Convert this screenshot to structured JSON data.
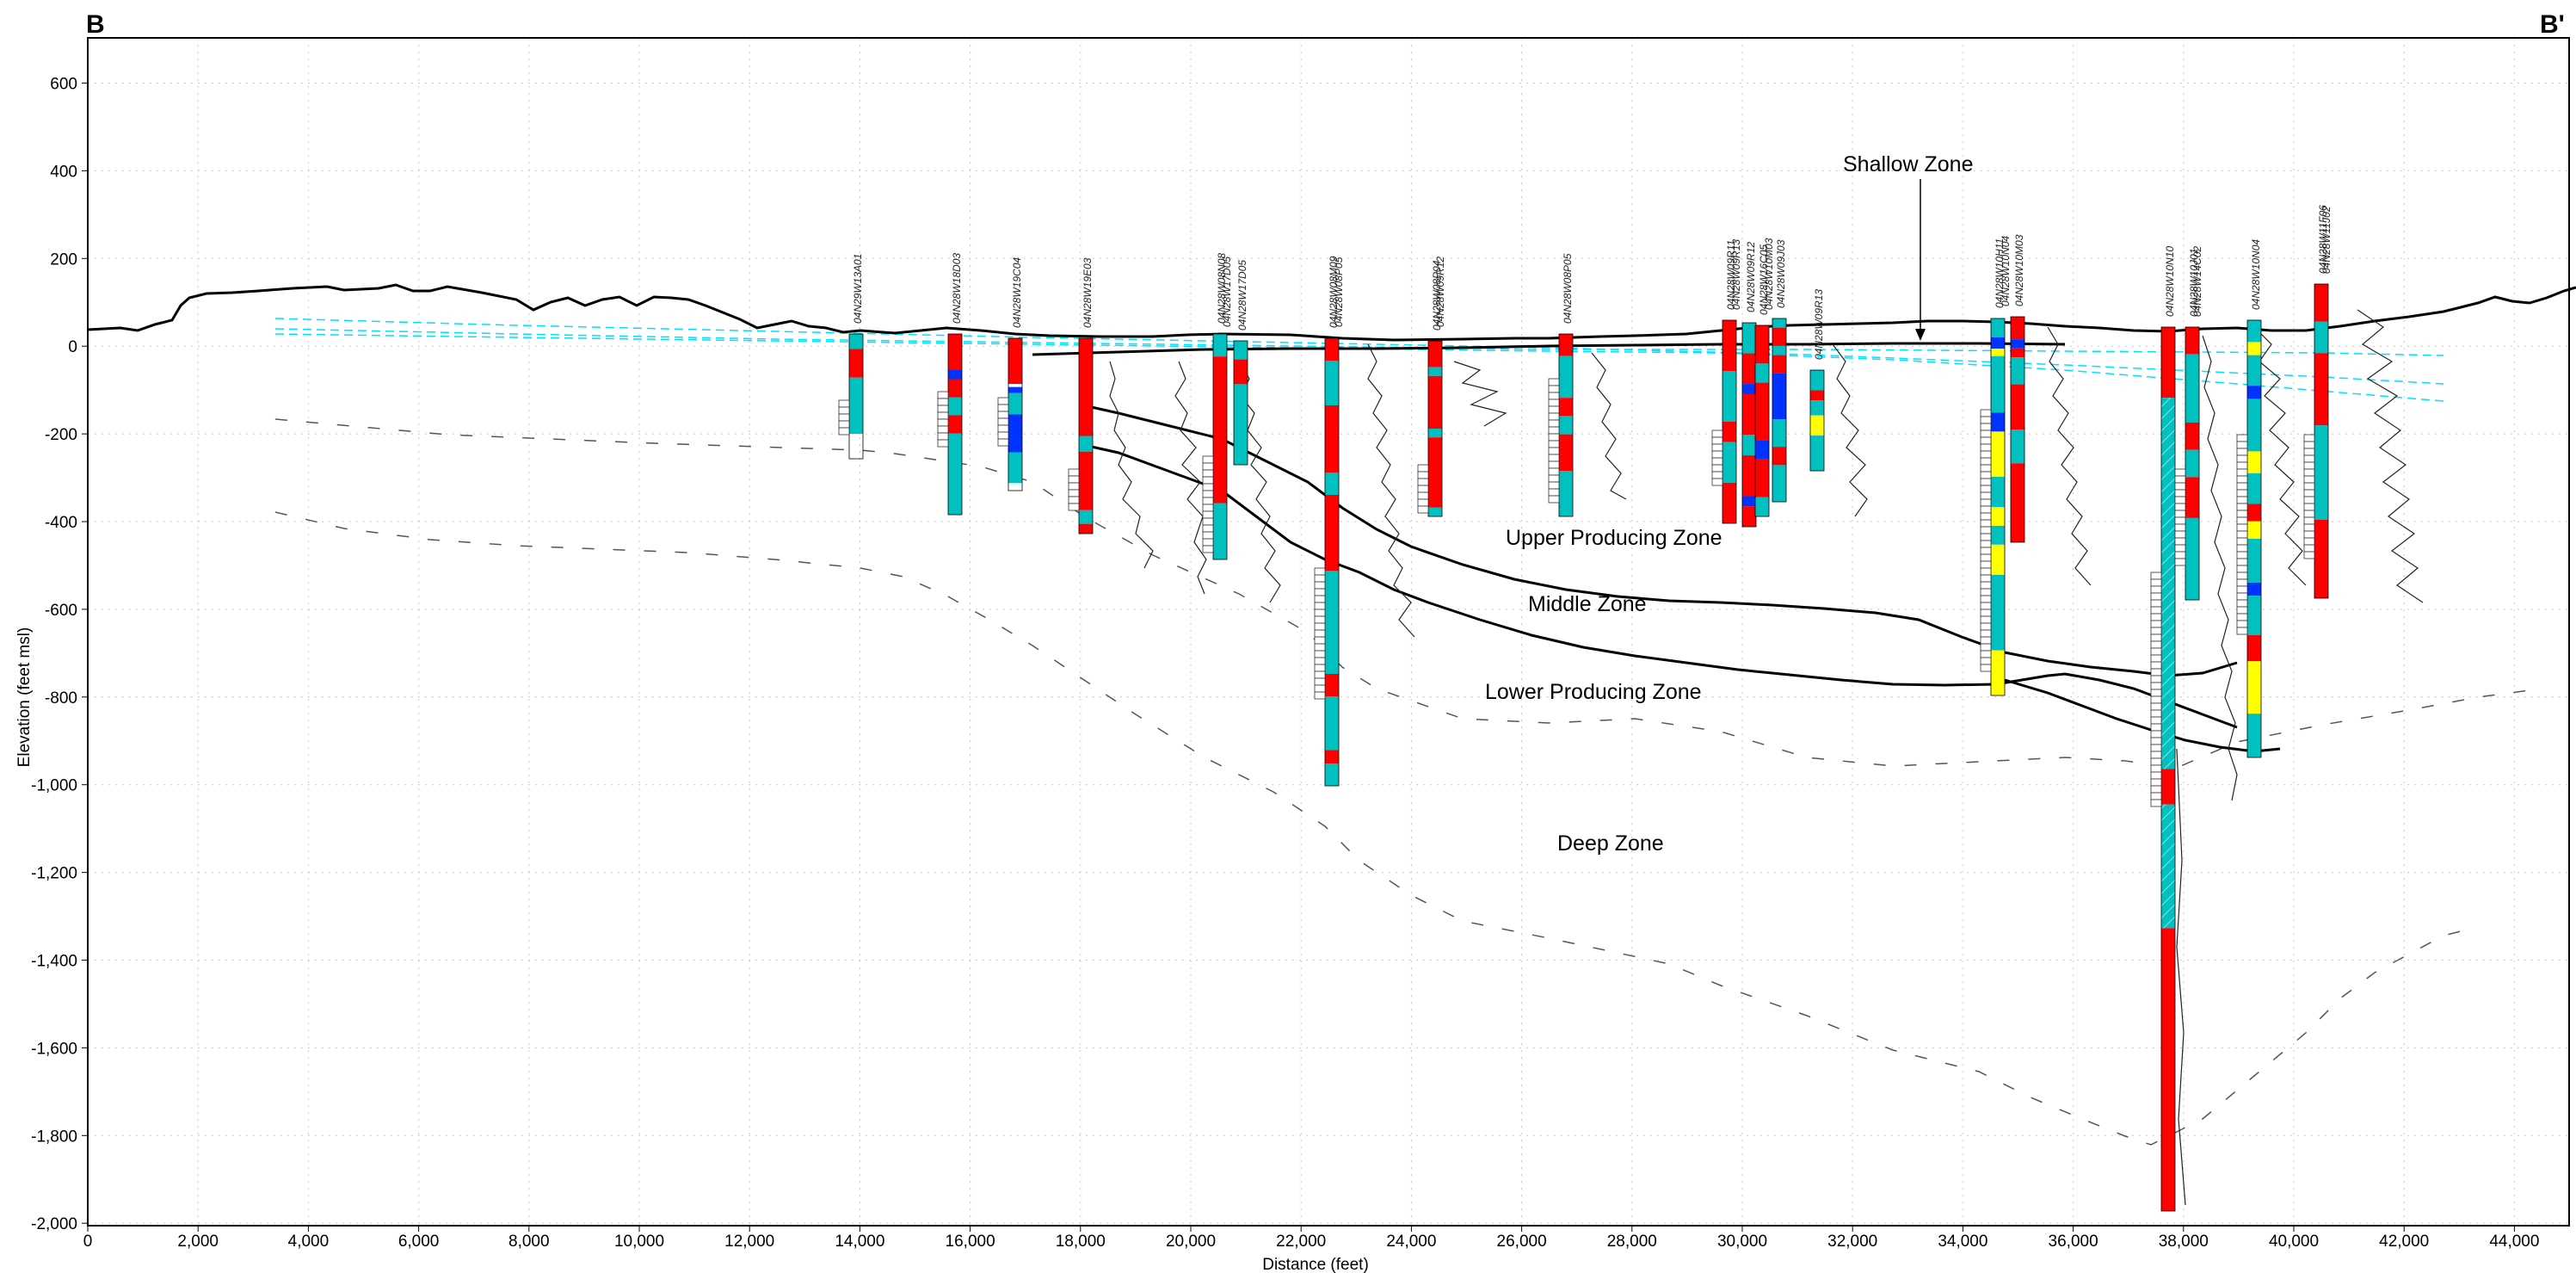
{
  "section": {
    "corner_left": "B",
    "corner_right": "B'",
    "y_axis_title": "Elevation (feet msl)",
    "x_axis_title": "Distance (feet)",
    "x_ticks": [
      "0",
      "2,000",
      "4,000",
      "6,000",
      "8,000",
      "10,000",
      "12,000",
      "14,000",
      "16,000",
      "18,000",
      "20,000",
      "22,000",
      "24,000",
      "26,000",
      "28,000",
      "30,000",
      "32,000",
      "34,000",
      "36,000",
      "38,000",
      "40,000",
      "42,000",
      "44,000"
    ],
    "y_ticks": [
      "600",
      "400",
      "200",
      "0",
      "-200",
      "-400",
      "-600",
      "-800",
      "-1,000",
      "-1,200",
      "-1,400",
      "-1,600",
      "-1,800",
      "-2,000"
    ]
  },
  "zones": {
    "shallow": "Shallow Zone",
    "upper": "Upper Producing Zone",
    "middle": "Middle Zone",
    "lower": "Lower Producing Zone",
    "deep": "Deep Zone"
  },
  "wells": [
    {
      "label": "04N29W13A01"
    },
    {
      "label": "04N28W18D03"
    },
    {
      "label": "04N28W19C04"
    },
    {
      "label": "04N28W19E03"
    },
    {
      "label": "04N28W08N08"
    },
    {
      "label": "04N28W17D05"
    },
    {
      "label": "04N28W08M09"
    },
    {
      "label": "04N28W08P04"
    },
    {
      "label": "04N28W08P05"
    },
    {
      "label": "04N28W09R11"
    },
    {
      "label": "04N28W09R12"
    },
    {
      "label": "04N28W16C05"
    },
    {
      "label": "04N28W09J03"
    },
    {
      "label": "04N28W09R13"
    },
    {
      "label": "04N28W10H11"
    },
    {
      "label": "04N28W10M03"
    },
    {
      "label": "04N28W10N10"
    },
    {
      "label": "04N28W10J01"
    },
    {
      "label": "04N28W10N04"
    },
    {
      "label": "04N28W11F06"
    },
    {
      "label": "04N28W14C02"
    },
    {
      "label": "04N28W11K05"
    },
    {
      "label": "04N28W11J02"
    }
  ],
  "colors": {
    "sand": "#ff0000",
    "clay": "#00c0c0",
    "gravel": "#0033ff",
    "silt": "#ffff00",
    "water_level": "#00e0ff",
    "frame": "#000000",
    "grid": "#c8c8c8"
  }
}
